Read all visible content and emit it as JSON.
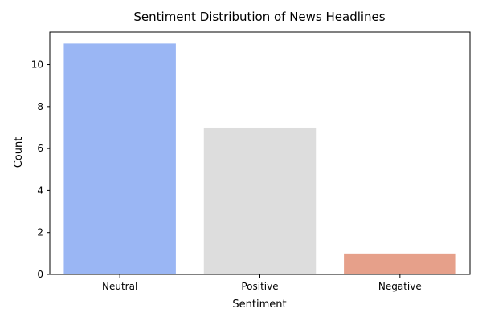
{
  "chart_data": {
    "type": "bar",
    "title": "Sentiment Distribution of News Headlines",
    "xlabel": "Sentiment",
    "ylabel": "Count",
    "categories": [
      "Neutral",
      "Positive",
      "Negative"
    ],
    "values": [
      11,
      7,
      1
    ],
    "colors": [
      "#9ab6f4",
      "#dddddd",
      "#e6a08a"
    ],
    "ylim": [
      0,
      11.55
    ],
    "yticks": [
      0,
      2,
      4,
      6,
      8,
      10
    ],
    "grid": false,
    "legend": "none"
  }
}
